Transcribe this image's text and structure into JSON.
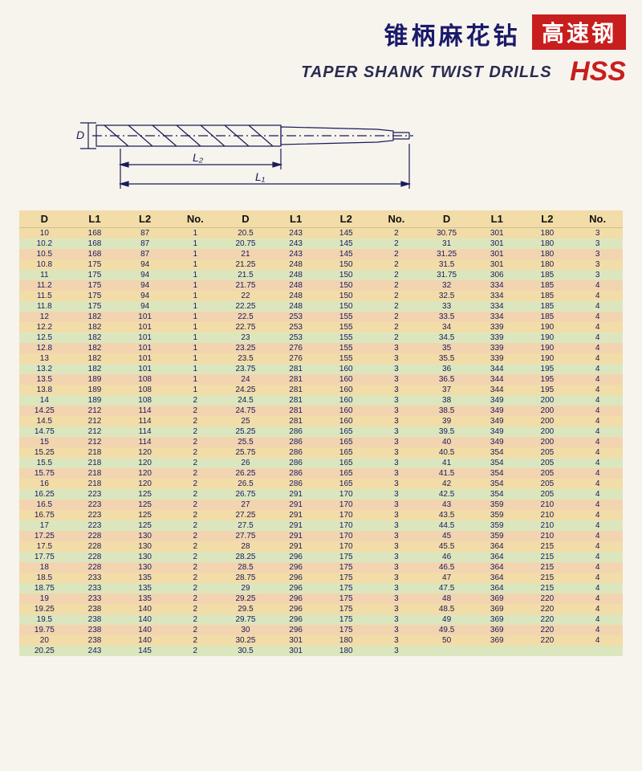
{
  "document": {
    "title_cn": "锥柄麻花钻",
    "badge_cn": "高速钢",
    "title_en": "TAPER SHANK TWIST DRILLS",
    "hss": "HSS",
    "diagram": {
      "D_label": "D",
      "L1_label": "L₁",
      "L2_label": "L₂",
      "stroke": "#1a1a5a"
    },
    "table": {
      "headers": [
        "D",
        "L1",
        "L2",
        "No.",
        "D",
        "L1",
        "L2",
        "No.",
        "D",
        "L1",
        "L2",
        "No."
      ],
      "row_colors": [
        "#f2dca8",
        "#dce6be",
        "#f2d4b0"
      ],
      "rows": [
        [
          "10",
          "168",
          "87",
          "1",
          "20.5",
          "243",
          "145",
          "2",
          "30.75",
          "301",
          "180",
          "3"
        ],
        [
          "10.2",
          "168",
          "87",
          "1",
          "20.75",
          "243",
          "145",
          "2",
          "31",
          "301",
          "180",
          "3"
        ],
        [
          "10.5",
          "168",
          "87",
          "1",
          "21",
          "243",
          "145",
          "2",
          "31.25",
          "301",
          "180",
          "3"
        ],
        [
          "10.8",
          "175",
          "94",
          "1",
          "21.25",
          "248",
          "150",
          "2",
          "31.5",
          "301",
          "180",
          "3"
        ],
        [
          "11",
          "175",
          "94",
          "1",
          "21.5",
          "248",
          "150",
          "2",
          "31.75",
          "306",
          "185",
          "3"
        ],
        [
          "11.2",
          "175",
          "94",
          "1",
          "21.75",
          "248",
          "150",
          "2",
          "32",
          "334",
          "185",
          "4"
        ],
        [
          "11.5",
          "175",
          "94",
          "1",
          "22",
          "248",
          "150",
          "2",
          "32.5",
          "334",
          "185",
          "4"
        ],
        [
          "11.8",
          "175",
          "94",
          "1",
          "22.25",
          "248",
          "150",
          "2",
          "33",
          "334",
          "185",
          "4"
        ],
        [
          "12",
          "182",
          "101",
          "1",
          "22.5",
          "253",
          "155",
          "2",
          "33.5",
          "334",
          "185",
          "4"
        ],
        [
          "12.2",
          "182",
          "101",
          "1",
          "22.75",
          "253",
          "155",
          "2",
          "34",
          "339",
          "190",
          "4"
        ],
        [
          "12.5",
          "182",
          "101",
          "1",
          "23",
          "253",
          "155",
          "2",
          "34.5",
          "339",
          "190",
          "4"
        ],
        [
          "12.8",
          "182",
          "101",
          "1",
          "23.25",
          "276",
          "155",
          "3",
          "35",
          "339",
          "190",
          "4"
        ],
        [
          "13",
          "182",
          "101",
          "1",
          "23.5",
          "276",
          "155",
          "3",
          "35.5",
          "339",
          "190",
          "4"
        ],
        [
          "13.2",
          "182",
          "101",
          "1",
          "23.75",
          "281",
          "160",
          "3",
          "36",
          "344",
          "195",
          "4"
        ],
        [
          "13.5",
          "189",
          "108",
          "1",
          "24",
          "281",
          "160",
          "3",
          "36.5",
          "344",
          "195",
          "4"
        ],
        [
          "13.8",
          "189",
          "108",
          "1",
          "24.25",
          "281",
          "160",
          "3",
          "37",
          "344",
          "195",
          "4"
        ],
        [
          "14",
          "189",
          "108",
          "2",
          "24.5",
          "281",
          "160",
          "3",
          "38",
          "349",
          "200",
          "4"
        ],
        [
          "14.25",
          "212",
          "114",
          "2",
          "24.75",
          "281",
          "160",
          "3",
          "38.5",
          "349",
          "200",
          "4"
        ],
        [
          "14.5",
          "212",
          "114",
          "2",
          "25",
          "281",
          "160",
          "3",
          "39",
          "349",
          "200",
          "4"
        ],
        [
          "14.75",
          "212",
          "114",
          "2",
          "25.25",
          "286",
          "165",
          "3",
          "39.5",
          "349",
          "200",
          "4"
        ],
        [
          "15",
          "212",
          "114",
          "2",
          "25.5",
          "286",
          "165",
          "3",
          "40",
          "349",
          "200",
          "4"
        ],
        [
          "15.25",
          "218",
          "120",
          "2",
          "25.75",
          "286",
          "165",
          "3",
          "40.5",
          "354",
          "205",
          "4"
        ],
        [
          "15.5",
          "218",
          "120",
          "2",
          "26",
          "286",
          "165",
          "3",
          "41",
          "354",
          "205",
          "4"
        ],
        [
          "15.75",
          "218",
          "120",
          "2",
          "26.25",
          "286",
          "165",
          "3",
          "41.5",
          "354",
          "205",
          "4"
        ],
        [
          "16",
          "218",
          "120",
          "2",
          "26.5",
          "286",
          "165",
          "3",
          "42",
          "354",
          "205",
          "4"
        ],
        [
          "16.25",
          "223",
          "125",
          "2",
          "26.75",
          "291",
          "170",
          "3",
          "42.5",
          "354",
          "205",
          "4"
        ],
        [
          "16.5",
          "223",
          "125",
          "2",
          "27",
          "291",
          "170",
          "3",
          "43",
          "359",
          "210",
          "4"
        ],
        [
          "16.75",
          "223",
          "125",
          "2",
          "27.25",
          "291",
          "170",
          "3",
          "43.5",
          "359",
          "210",
          "4"
        ],
        [
          "17",
          "223",
          "125",
          "2",
          "27.5",
          "291",
          "170",
          "3",
          "44.5",
          "359",
          "210",
          "4"
        ],
        [
          "17.25",
          "228",
          "130",
          "2",
          "27.75",
          "291",
          "170",
          "3",
          "45",
          "359",
          "210",
          "4"
        ],
        [
          "17.5",
          "228",
          "130",
          "2",
          "28",
          "291",
          "170",
          "3",
          "45.5",
          "364",
          "215",
          "4"
        ],
        [
          "17.75",
          "228",
          "130",
          "2",
          "28.25",
          "296",
          "175",
          "3",
          "46",
          "364",
          "215",
          "4"
        ],
        [
          "18",
          "228",
          "130",
          "2",
          "28.5",
          "296",
          "175",
          "3",
          "46.5",
          "364",
          "215",
          "4"
        ],
        [
          "18.5",
          "233",
          "135",
          "2",
          "28.75",
          "296",
          "175",
          "3",
          "47",
          "364",
          "215",
          "4"
        ],
        [
          "18.75",
          "233",
          "135",
          "2",
          "29",
          "296",
          "175",
          "3",
          "47.5",
          "364",
          "215",
          "4"
        ],
        [
          "19",
          "233",
          "135",
          "2",
          "29.25",
          "296",
          "175",
          "3",
          "48",
          "369",
          "220",
          "4"
        ],
        [
          "19.25",
          "238",
          "140",
          "2",
          "29.5",
          "296",
          "175",
          "3",
          "48.5",
          "369",
          "220",
          "4"
        ],
        [
          "19.5",
          "238",
          "140",
          "2",
          "29.75",
          "296",
          "175",
          "3",
          "49",
          "369",
          "220",
          "4"
        ],
        [
          "19.75",
          "238",
          "140",
          "2",
          "30",
          "296",
          "175",
          "3",
          "49.5",
          "369",
          "220",
          "4"
        ],
        [
          "20",
          "238",
          "140",
          "2",
          "30.25",
          "301",
          "180",
          "3",
          "50",
          "369",
          "220",
          "4"
        ],
        [
          "20.25",
          "243",
          "145",
          "2",
          "30.5",
          "301",
          "180",
          "3",
          "",
          "",
          "",
          ""
        ]
      ]
    }
  }
}
